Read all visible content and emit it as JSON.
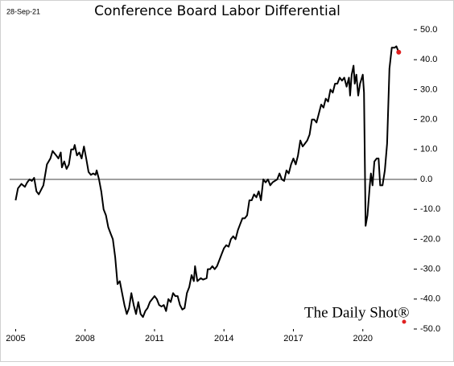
{
  "chart_data": {
    "type": "line",
    "title": "Conference Board Labor Differential",
    "date_label": "28-Sep-21",
    "watermark": "The Daily Shot®",
    "series": [
      {
        "name": "Labor Differential",
        "color": "#000000",
        "end_marker_color": "#e02020",
        "x": [
          2005.0,
          2005.1,
          2005.25,
          2005.4,
          2005.5,
          2005.6,
          2005.7,
          2005.8,
          2005.9,
          2006.0,
          2006.2,
          2006.35,
          2006.5,
          2006.6,
          2006.75,
          2006.85,
          2006.95,
          2007.0,
          2007.1,
          2007.2,
          2007.3,
          2007.4,
          2007.5,
          2007.55,
          2007.65,
          2007.75,
          2007.85,
          2007.95,
          2008.05,
          2008.15,
          2008.25,
          2008.35,
          2008.45,
          2008.5,
          2008.6,
          2008.7,
          2008.8,
          2008.9,
          2009.0,
          2009.1,
          2009.2,
          2009.3,
          2009.4,
          2009.5,
          2009.6,
          2009.7,
          2009.8,
          2009.9,
          2010.0,
          2010.1,
          2010.2,
          2010.3,
          2010.4,
          2010.5,
          2010.6,
          2010.7,
          2010.8,
          2010.9,
          2011.0,
          2011.1,
          2011.2,
          2011.3,
          2011.4,
          2011.5,
          2011.6,
          2011.7,
          2011.8,
          2011.9,
          2012.0,
          2012.1,
          2012.2,
          2012.3,
          2012.4,
          2012.5,
          2012.6,
          2012.7,
          2012.75,
          2012.85,
          2013.0,
          2013.1,
          2013.25,
          2013.3,
          2013.4,
          2013.5,
          2013.6,
          2013.7,
          2013.8,
          2013.9,
          2014.0,
          2014.1,
          2014.2,
          2014.3,
          2014.4,
          2014.5,
          2014.6,
          2014.7,
          2014.8,
          2014.9,
          2015.0,
          2015.1,
          2015.2,
          2015.3,
          2015.4,
          2015.5,
          2015.6,
          2015.7,
          2015.8,
          2015.9,
          2016.0,
          2016.1,
          2016.3,
          2016.4,
          2016.5,
          2016.6,
          2016.7,
          2016.8,
          2016.9,
          2017.0,
          2017.1,
          2017.2,
          2017.3,
          2017.4,
          2017.5,
          2017.6,
          2017.7,
          2017.8,
          2017.9,
          2018.0,
          2018.1,
          2018.2,
          2018.3,
          2018.4,
          2018.5,
          2018.6,
          2018.7,
          2018.8,
          2018.9,
          2019.0,
          2019.1,
          2019.2,
          2019.3,
          2019.4,
          2019.45,
          2019.52,
          2019.6,
          2019.65,
          2019.72,
          2019.8,
          2019.88,
          2020.0,
          2020.05,
          2020.12,
          2020.2,
          2020.3,
          2020.35,
          2020.42,
          2020.5,
          2020.6,
          2020.68,
          2020.75,
          2020.85,
          2020.95,
          2021.05,
          2021.15,
          2021.25,
          2021.38,
          2021.45,
          2021.55
        ],
        "values": [
          -7,
          -3,
          -1.5,
          -2.5,
          -1,
          0,
          -0.5,
          0.5,
          -4,
          -5,
          -2,
          5,
          7,
          9.5,
          8,
          7,
          9,
          4,
          6,
          3.5,
          5,
          10,
          10,
          11.5,
          8,
          9,
          7,
          11,
          7,
          2.5,
          1.5,
          2,
          1.5,
          3,
          0,
          -4,
          -10,
          -12,
          -16,
          -18,
          -20,
          -26,
          -35,
          -34,
          -38,
          -42,
          -45,
          -43,
          -38,
          -42,
          -45,
          -41,
          -45,
          -46,
          -44,
          -43,
          -41,
          -40,
          -39,
          -40,
          -42,
          -42.5,
          -42,
          -44,
          -40,
          -41,
          -38,
          -39,
          -39,
          -42,
          -43.5,
          -43,
          -38,
          -36,
          -32,
          -34,
          -29,
          -34,
          -33,
          -33.5,
          -33,
          -30,
          -30,
          -29,
          -30,
          -29,
          -27,
          -25,
          -23,
          -22,
          -22.5,
          -20,
          -19,
          -20,
          -17,
          -15,
          -13,
          -13,
          -12,
          -7,
          -7,
          -5,
          -6,
          -4,
          -7,
          0,
          -1,
          0,
          -2,
          -1,
          0,
          2,
          0,
          -0.5,
          3,
          2,
          5,
          7,
          5,
          8,
          13,
          11,
          12,
          13,
          15,
          20,
          20,
          19,
          22,
          25,
          24,
          27,
          26,
          30,
          29,
          32,
          32,
          34,
          33,
          34,
          31,
          34,
          28,
          35,
          38,
          32,
          35,
          28,
          32,
          35,
          29,
          -15.5,
          -12,
          -2,
          2,
          -2,
          6,
          7,
          7,
          -2,
          -2,
          3,
          12,
          37,
          44,
          44,
          44.5,
          42.5
        ]
      }
    ],
    "xlim": [
      2004.95,
      2022.2
    ],
    "xticks": [
      2005,
      2008,
      2011,
      2014,
      2017,
      2020
    ],
    "ylim": [
      -50,
      50
    ],
    "yticks": [
      {
        "value": 50,
        "label": "50.0"
      },
      {
        "value": 40,
        "label": "40.0"
      },
      {
        "value": 30,
        "label": "30.0"
      },
      {
        "value": 20,
        "label": "20.0"
      },
      {
        "value": 10,
        "label": "10.0"
      },
      {
        "value": 0,
        "label": "0.0"
      },
      {
        "value": -10,
        "label": "-10.0"
      },
      {
        "value": -20,
        "label": "-20.0"
      },
      {
        "value": -30,
        "label": "-30.0"
      },
      {
        "value": -40,
        "label": "-40.0"
      },
      {
        "value": -50,
        "label": "-50.0"
      }
    ],
    "grid": false,
    "zero_line": true
  }
}
